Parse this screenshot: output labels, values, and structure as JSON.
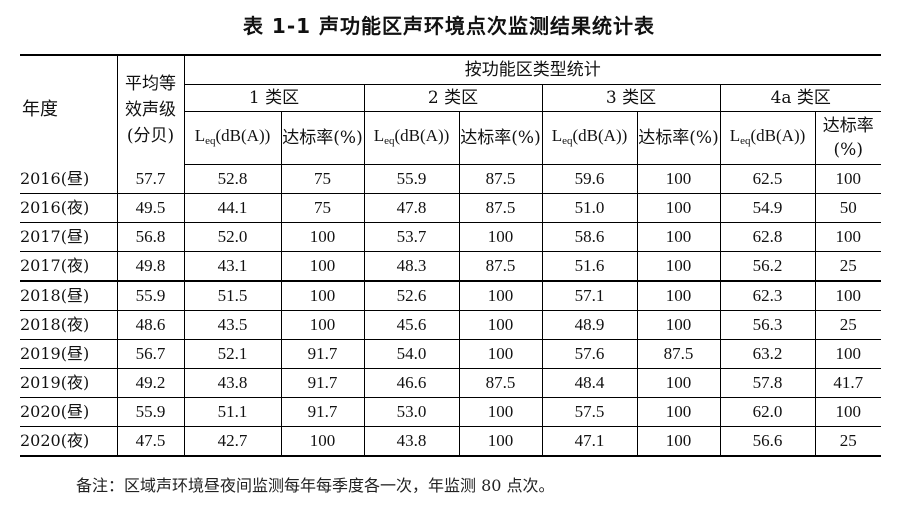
{
  "title": "表 1-1 声功能区声环境点次监测结果统计表",
  "header": {
    "year": "年度",
    "avg": "平均等效声级(分贝)",
    "group": "按功能区类型统计",
    "classes": [
      "1 类区",
      "2 类区",
      "3 类区",
      "4a 类区"
    ],
    "leq_prefix": "L",
    "leq_sub": "eq",
    "leq_unit": "(dB(A))",
    "rate": "达标率(%)"
  },
  "rows": [
    {
      "year": "2016(昼)",
      "avg": "57.7",
      "c1": "52.8",
      "r1": "75",
      "c2": "55.9",
      "r2": "87.5",
      "c3": "59.6",
      "r3": "100",
      "c4": "62.5",
      "r4": "100"
    },
    {
      "year": "2016(夜)",
      "avg": "49.5",
      "c1": "44.1",
      "r1": "75",
      "c2": "47.8",
      "r2": "87.5",
      "c3": "51.0",
      "r3": "100",
      "c4": "54.9",
      "r4": "50"
    },
    {
      "year": "2017(昼)",
      "avg": "56.8",
      "c1": "52.0",
      "r1": "100",
      "c2": "53.7",
      "r2": "100",
      "c3": "58.6",
      "r3": "100",
      "c4": "62.8",
      "r4": "100"
    },
    {
      "year": "2017(夜)",
      "avg": "49.8",
      "c1": "43.1",
      "r1": "100",
      "c2": "48.3",
      "r2": "87.5",
      "c3": "51.6",
      "r3": "100",
      "c4": "56.2",
      "r4": "25"
    },
    {
      "year": "2018(昼)",
      "avg": "55.9",
      "c1": "51.5",
      "r1": "100",
      "c2": "52.6",
      "r2": "100",
      "c3": "57.1",
      "r3": "100",
      "c4": "62.3",
      "r4": "100"
    },
    {
      "year": "2018(夜)",
      "avg": "48.6",
      "c1": "43.5",
      "r1": "100",
      "c2": "45.6",
      "r2": "100",
      "c3": "48.9",
      "r3": "100",
      "c4": "56.3",
      "r4": "25"
    },
    {
      "year": "2019(昼)",
      "avg": "56.7",
      "c1": "52.1",
      "r1": "91.7",
      "c2": "54.0",
      "r2": "100",
      "c3": "57.6",
      "r3": "87.5",
      "c4": "63.2",
      "r4": "100"
    },
    {
      "year": "2019(夜)",
      "avg": "49.2",
      "c1": "43.8",
      "r1": "91.7",
      "c2": "46.6",
      "r2": "87.5",
      "c3": "48.4",
      "r3": "100",
      "c4": "57.8",
      "r4": "41.7"
    },
    {
      "year": "2020(昼)",
      "avg": "55.9",
      "c1": "51.1",
      "r1": "91.7",
      "c2": "53.0",
      "r2": "100",
      "c3": "57.5",
      "r3": "100",
      "c4": "62.0",
      "r4": "100"
    },
    {
      "year": "2020(夜)",
      "avg": "47.5",
      "c1": "42.7",
      "r1": "100",
      "c2": "43.8",
      "r2": "100",
      "c3": "47.1",
      "r3": "100",
      "c4": "56.6",
      "r4": "25"
    }
  ],
  "note": "备注：区域声环境昼夜间监测每年每季度各一次，年监测 80 点次。"
}
